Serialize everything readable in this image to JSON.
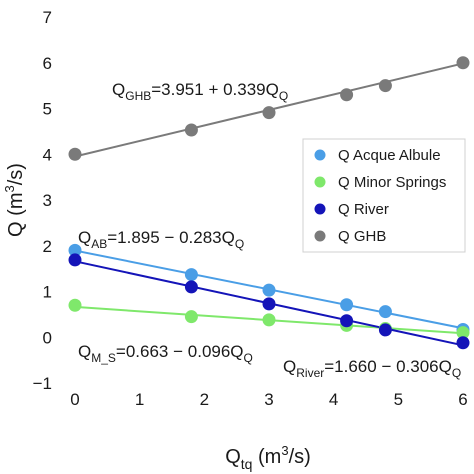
{
  "chart_data": {
    "type": "scatter",
    "xlabel": {
      "base": "Q",
      "sub": "tq",
      "unit_pre": " (m",
      "unit_sup": "3",
      "unit_post": "/s)"
    },
    "ylabel": {
      "base": "Q",
      "unit_pre": " (m",
      "unit_sup": "3",
      "unit_post": "/s)"
    },
    "xlim": [
      0,
      6
    ],
    "ylim": [
      -1,
      7
    ],
    "xticks": [
      "0",
      "1",
      "2",
      "3",
      "4",
      "5",
      "6"
    ],
    "yticks": [
      "−1",
      "0",
      "1",
      "2",
      "3",
      "4",
      "5",
      "6",
      "7"
    ],
    "grid": false,
    "legend_position": "right",
    "series": [
      {
        "name": "Q Acque Albule",
        "color": "#4a9ee6",
        "x": [
          0,
          1.8,
          3.0,
          4.2,
          4.8,
          6.0
        ],
        "y": [
          1.9,
          1.37,
          1.03,
          0.71,
          0.56,
          0.17
        ],
        "fit": {
          "intercept": 1.895,
          "slope": -0.283
        },
        "equation": {
          "q": "Q",
          "sub": "AB",
          "rest": "=1.895 − 0.283Q",
          "tail_sub": "Q"
        }
      },
      {
        "name": "Q Minor Springs",
        "color": "#7fe86b",
        "x": [
          0,
          1.8,
          3.0,
          4.2,
          4.8,
          6.0
        ],
        "y": [
          0.7,
          0.45,
          0.38,
          0.26,
          0.19,
          0.1
        ],
        "fit": {
          "intercept": 0.663,
          "slope": -0.096
        },
        "equation": {
          "q": "Q",
          "sub": "M_S",
          "rest": "=0.663 − 0.096Q",
          "tail_sub": "Q"
        }
      },
      {
        "name": "Q River",
        "color": "#1414b8",
        "x": [
          0,
          1.8,
          3.0,
          4.2,
          4.8,
          6.0
        ],
        "y": [
          1.69,
          1.1,
          0.73,
          0.36,
          0.16,
          -0.12
        ],
        "fit": {
          "intercept": 1.66,
          "slope": -0.306
        },
        "equation": {
          "q": "Q",
          "sub": "River",
          "rest": "=1.660 − 0.306Q",
          "tail_sub": "Q"
        }
      },
      {
        "name": "Q GHB",
        "color": "#7a7a7a",
        "x": [
          0,
          1.8,
          3.0,
          4.2,
          4.8,
          6.0
        ],
        "y": [
          4.0,
          4.53,
          4.91,
          5.3,
          5.5,
          6.0
        ],
        "fit": {
          "intercept": 3.951,
          "slope": 0.339
        },
        "equation": {
          "q": "Q",
          "sub": "GHB",
          "rest": "=3.951 + 0.339Q",
          "tail_sub": "Q"
        }
      }
    ]
  }
}
